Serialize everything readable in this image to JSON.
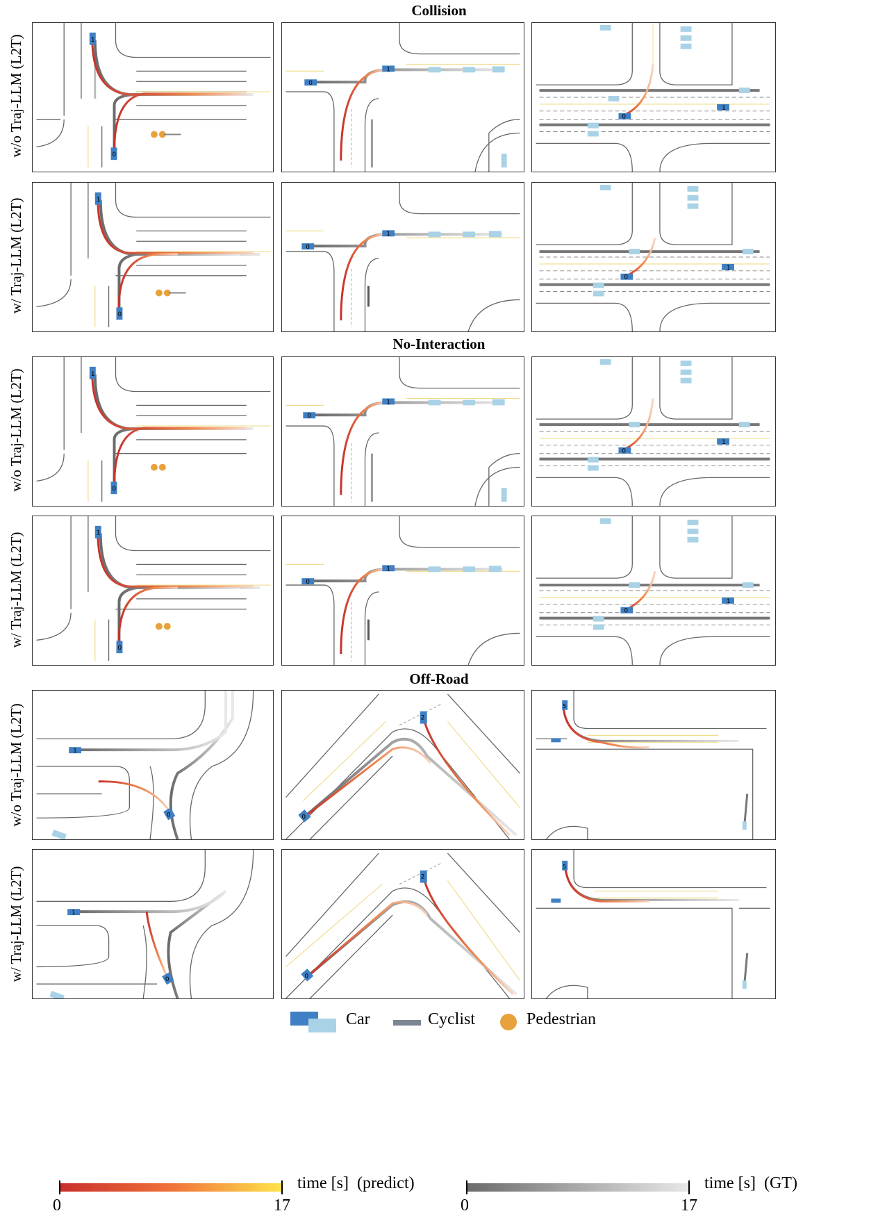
{
  "sections": [
    {
      "title": "Collision"
    },
    {
      "title": "No-Interaction"
    },
    {
      "title": "Off-Road"
    }
  ],
  "row_labels": {
    "without": "w/o Traj-LLM (L2T)",
    "with": "w/ Traj-LLM (L2T)"
  },
  "agent_ids": {
    "a0": "0",
    "a1": "1",
    "a2": "2",
    "a5": "5"
  },
  "legend": {
    "car": "Car",
    "cyclist": "Cyclist",
    "pedestrian": "Pedestrian"
  },
  "colorbars": {
    "predict": {
      "label": "time [s]  (predict)",
      "min": "0",
      "max": "17"
    },
    "gt": {
      "label": "time [s]  (GT)",
      "min": "0",
      "max": "17"
    }
  },
  "colors": {
    "car_dark": "#3f7fc3",
    "car_light": "#a9d2e6",
    "cyclist": "#7d8594",
    "pedestrian": "#e8a23c",
    "pred_start": "#c8302a",
    "pred_end": "#ffe44a",
    "gt_start": "#6b6b6b",
    "gt_end": "#e8e8e8",
    "lane_yellow": "#f0dc8c",
    "road": "#555555"
  }
}
